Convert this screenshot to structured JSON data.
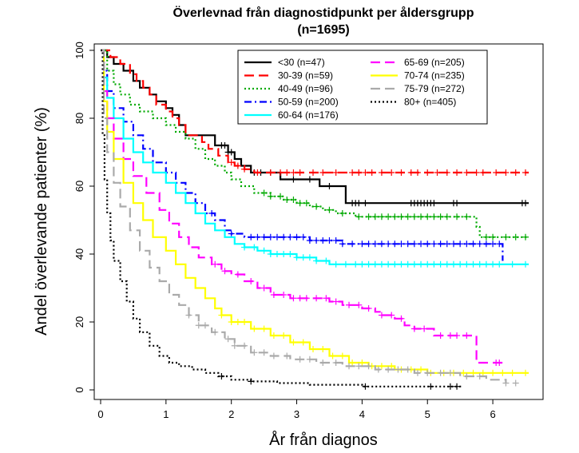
{
  "chart_data": {
    "type": "line",
    "title": "Överlevnad från diagnostidpunkt per åldersgrupp",
    "subtitle": "(n=1695)",
    "xlabel": "År från diagnos",
    "ylabel": "Andel överlevande patienter (%)",
    "xlim": [
      0,
      6.5
    ],
    "ylim": [
      0,
      100
    ],
    "x_ticks": [
      "0",
      "1",
      "2",
      "3",
      "4",
      "5",
      "6"
    ],
    "y_ticks": [
      "0",
      "20",
      "40",
      "60",
      "80",
      "100"
    ],
    "grid": false,
    "legend_position": "top-right",
    "series": [
      {
        "name": "<30 (n=47)",
        "color": "#000000",
        "style": "solid",
        "points": [
          [
            0,
            100
          ],
          [
            0.1,
            98
          ],
          [
            0.2,
            96
          ],
          [
            0.35,
            94
          ],
          [
            0.5,
            91
          ],
          [
            0.6,
            89
          ],
          [
            0.75,
            87
          ],
          [
            0.85,
            85
          ],
          [
            1.0,
            83
          ],
          [
            1.1,
            81
          ],
          [
            1.2,
            78
          ],
          [
            1.3,
            75
          ],
          [
            1.6,
            75
          ],
          [
            1.75,
            72
          ],
          [
            1.95,
            70
          ],
          [
            2.05,
            68
          ],
          [
            2.15,
            66
          ],
          [
            2.3,
            64
          ],
          [
            2.6,
            64
          ],
          [
            2.75,
            62
          ],
          [
            3.3,
            62
          ],
          [
            3.35,
            60
          ],
          [
            3.75,
            58
          ],
          [
            3.75,
            55
          ],
          [
            6.55,
            55
          ]
        ],
        "censor": [
          1.85,
          1.9,
          1.95,
          2.0,
          2.35,
          2.45,
          2.6,
          2.95,
          3.2,
          3.5,
          3.85,
          3.9,
          3.95,
          4.05,
          4.75,
          4.8,
          4.85,
          4.9,
          4.95,
          5.0,
          5.05,
          5.1,
          5.4,
          5.45,
          6.45,
          6.5
        ]
      },
      {
        "name": "30-39 (n=59)",
        "color": "#ff0000",
        "style": "longdash",
        "points": [
          [
            0,
            100
          ],
          [
            0.15,
            98
          ],
          [
            0.3,
            96
          ],
          [
            0.45,
            93
          ],
          [
            0.55,
            91
          ],
          [
            0.65,
            89
          ],
          [
            0.75,
            87
          ],
          [
            0.85,
            84
          ],
          [
            1.0,
            82
          ],
          [
            1.1,
            80
          ],
          [
            1.2,
            78
          ],
          [
            1.3,
            75
          ],
          [
            1.55,
            73
          ],
          [
            1.65,
            71
          ],
          [
            1.8,
            69
          ],
          [
            1.95,
            67
          ],
          [
            2.05,
            66
          ],
          [
            2.2,
            65
          ],
          [
            2.35,
            64
          ],
          [
            6.55,
            64
          ]
        ],
        "censor": [
          2.0,
          2.1,
          2.2,
          2.4,
          2.6,
          2.75,
          2.85,
          2.95,
          3.05,
          3.25,
          3.4,
          3.6,
          3.85,
          3.95,
          4.05,
          4.15,
          4.3,
          4.45,
          4.6,
          4.75,
          4.85,
          5.0,
          5.15,
          5.3,
          5.45,
          5.6,
          5.75,
          5.85,
          6.05,
          6.2,
          6.35,
          6.5
        ]
      },
      {
        "name": "40-49 (n=96)",
        "color": "#00aa00",
        "style": "dotted",
        "points": [
          [
            0,
            100
          ],
          [
            0.1,
            94
          ],
          [
            0.2,
            90
          ],
          [
            0.3,
            87
          ],
          [
            0.45,
            84
          ],
          [
            0.6,
            82
          ],
          [
            0.8,
            80
          ],
          [
            1.0,
            78
          ],
          [
            1.15,
            76
          ],
          [
            1.3,
            74
          ],
          [
            1.45,
            71
          ],
          [
            1.6,
            68
          ],
          [
            1.75,
            66
          ],
          [
            1.9,
            64
          ],
          [
            2.0,
            62
          ],
          [
            2.15,
            60
          ],
          [
            2.35,
            58
          ],
          [
            2.6,
            57
          ],
          [
            2.8,
            56
          ],
          [
            3.0,
            55
          ],
          [
            3.2,
            54
          ],
          [
            3.4,
            53
          ],
          [
            3.6,
            52
          ],
          [
            3.9,
            51
          ],
          [
            5.75,
            51
          ],
          [
            5.75,
            48
          ],
          [
            5.8,
            45
          ],
          [
            6.55,
            45
          ]
        ],
        "censor": [
          2.5,
          2.6,
          2.75,
          2.85,
          2.95,
          3.05,
          3.15,
          3.3,
          3.5,
          3.7,
          3.95,
          4.1,
          4.2,
          4.3,
          4.4,
          4.5,
          4.6,
          4.7,
          4.8,
          4.9,
          5.0,
          5.1,
          5.2,
          5.3,
          5.45,
          5.6,
          5.9,
          6.0,
          6.2,
          6.35,
          6.5
        ]
      },
      {
        "name": "50-59 (n=200)",
        "color": "#0000ff",
        "style": "dotdash",
        "points": [
          [
            0,
            100
          ],
          [
            0.05,
            94
          ],
          [
            0.1,
            88
          ],
          [
            0.2,
            83
          ],
          [
            0.35,
            79
          ],
          [
            0.5,
            75
          ],
          [
            0.65,
            71
          ],
          [
            0.8,
            67
          ],
          [
            1.0,
            64
          ],
          [
            1.15,
            61
          ],
          [
            1.3,
            58
          ],
          [
            1.45,
            55
          ],
          [
            1.6,
            52
          ],
          [
            1.75,
            50
          ],
          [
            1.9,
            47
          ],
          [
            2.0,
            46
          ],
          [
            2.2,
            45
          ],
          [
            3.0,
            45
          ],
          [
            3.2,
            44
          ],
          [
            3.6,
            44
          ],
          [
            3.7,
            43
          ],
          [
            6.1,
            43
          ],
          [
            6.15,
            42
          ],
          [
            6.15,
            38
          ]
        ],
        "censor": [
          1.7,
          2.0,
          2.3,
          2.4,
          2.5,
          2.6,
          2.7,
          2.8,
          2.9,
          3.0,
          3.1,
          3.2,
          3.3,
          3.4,
          3.5,
          3.6,
          3.7,
          3.85,
          4.0,
          4.1,
          4.2,
          4.3,
          4.4,
          4.5,
          4.6,
          4.7,
          4.8,
          4.9,
          5.0,
          5.1,
          5.2,
          5.3,
          5.4,
          5.5,
          5.6,
          5.7,
          5.8,
          5.9,
          6.0,
          6.1
        ]
      },
      {
        "name": "60-64 (n=176)",
        "color": "#00ffff",
        "style": "solid",
        "points": [
          [
            0,
            100
          ],
          [
            0.05,
            92
          ],
          [
            0.1,
            86
          ],
          [
            0.2,
            80
          ],
          [
            0.35,
            74
          ],
          [
            0.5,
            70
          ],
          [
            0.65,
            67
          ],
          [
            0.8,
            64
          ],
          [
            1.0,
            61
          ],
          [
            1.15,
            58
          ],
          [
            1.3,
            55
          ],
          [
            1.45,
            52
          ],
          [
            1.6,
            49
          ],
          [
            1.75,
            47
          ],
          [
            1.9,
            45
          ],
          [
            2.05,
            43
          ],
          [
            2.2,
            42
          ],
          [
            2.4,
            41
          ],
          [
            2.6,
            40
          ],
          [
            3.0,
            39
          ],
          [
            3.3,
            38
          ],
          [
            3.5,
            37
          ],
          [
            6.55,
            37
          ]
        ],
        "censor": [
          2.2,
          2.35,
          2.5,
          2.6,
          2.7,
          2.8,
          2.9,
          3.0,
          3.1,
          3.2,
          3.3,
          3.45,
          3.6,
          3.75,
          3.9,
          4.0,
          4.1,
          4.2,
          4.3,
          4.4,
          4.5,
          4.6,
          4.7,
          4.8,
          4.9,
          5.0,
          5.1,
          5.2,
          5.3,
          5.4,
          5.5,
          5.6,
          5.7,
          5.8,
          5.9,
          6.0,
          6.1,
          6.3,
          6.5
        ]
      },
      {
        "name": "65-69 (n=205)",
        "color": "#ff00ff",
        "style": "longdash",
        "points": [
          [
            0,
            100
          ],
          [
            0.05,
            88
          ],
          [
            0.1,
            80
          ],
          [
            0.2,
            74
          ],
          [
            0.35,
            68
          ],
          [
            0.5,
            63
          ],
          [
            0.7,
            58
          ],
          [
            0.9,
            53
          ],
          [
            1.05,
            49
          ],
          [
            1.2,
            45
          ],
          [
            1.35,
            42
          ],
          [
            1.5,
            39
          ],
          [
            1.7,
            37
          ],
          [
            1.85,
            35
          ],
          [
            2.0,
            34
          ],
          [
            2.2,
            32
          ],
          [
            2.4,
            30
          ],
          [
            2.6,
            28
          ],
          [
            2.9,
            27
          ],
          [
            3.3,
            27
          ],
          [
            3.5,
            26
          ],
          [
            3.7,
            25
          ],
          [
            4.0,
            24
          ],
          [
            4.2,
            23
          ],
          [
            4.3,
            22
          ],
          [
            4.5,
            21
          ],
          [
            4.65,
            19
          ],
          [
            4.8,
            18
          ],
          [
            5.1,
            16
          ],
          [
            5.7,
            16
          ],
          [
            5.75,
            13
          ],
          [
            5.75,
            8
          ],
          [
            6.2,
            8
          ]
        ],
        "censor": [
          1.75,
          1.9,
          2.1,
          2.3,
          2.5,
          2.65,
          2.8,
          2.95,
          3.05,
          3.15,
          3.3,
          3.45,
          3.6,
          3.8,
          3.95,
          4.1,
          4.3,
          4.45,
          4.6,
          4.8,
          4.95,
          5.2,
          5.35,
          5.45,
          5.6,
          6.05,
          6.1
        ]
      },
      {
        "name": "70-74 (n=235)",
        "color": "#ffff00",
        "style": "solid",
        "points": [
          [
            0,
            100
          ],
          [
            0.05,
            85
          ],
          [
            0.1,
            76
          ],
          [
            0.2,
            68
          ],
          [
            0.35,
            61
          ],
          [
            0.5,
            55
          ],
          [
            0.65,
            50
          ],
          [
            0.8,
            45
          ],
          [
            1.0,
            41
          ],
          [
            1.15,
            37
          ],
          [
            1.3,
            33
          ],
          [
            1.45,
            30
          ],
          [
            1.6,
            27
          ],
          [
            1.75,
            24
          ],
          [
            1.85,
            22
          ],
          [
            2.0,
            20
          ],
          [
            2.3,
            18
          ],
          [
            2.6,
            16
          ],
          [
            2.9,
            14
          ],
          [
            3.2,
            12
          ],
          [
            3.5,
            10
          ],
          [
            3.8,
            8
          ],
          [
            4.1,
            7
          ],
          [
            4.5,
            6
          ],
          [
            5.0,
            5
          ],
          [
            6.55,
            5
          ]
        ],
        "censor": [
          1.85,
          2.0,
          2.1,
          2.2,
          2.35,
          2.5,
          2.65,
          2.8,
          2.95,
          3.1,
          3.25,
          3.4,
          3.55,
          3.7,
          3.85,
          4.0,
          4.15,
          4.3,
          4.45,
          4.6,
          4.75,
          4.9,
          5.05,
          5.25,
          5.4,
          5.55,
          5.7,
          5.85,
          6.0,
          6.15,
          6.3,
          6.5
        ]
      },
      {
        "name": "75-79 (n=272)",
        "color": "#aaaaaa",
        "style": "longdash",
        "points": [
          [
            0,
            100
          ],
          [
            0.05,
            80
          ],
          [
            0.1,
            70
          ],
          [
            0.2,
            61
          ],
          [
            0.3,
            54
          ],
          [
            0.45,
            47
          ],
          [
            0.6,
            41
          ],
          [
            0.75,
            36
          ],
          [
            0.9,
            32
          ],
          [
            1.05,
            28
          ],
          [
            1.2,
            25
          ],
          [
            1.35,
            22
          ],
          [
            1.5,
            19
          ],
          [
            1.7,
            17
          ],
          [
            1.9,
            15
          ],
          [
            2.05,
            13
          ],
          [
            2.3,
            11
          ],
          [
            2.6,
            10
          ],
          [
            2.9,
            9
          ],
          [
            3.3,
            8
          ],
          [
            3.7,
            7
          ],
          [
            4.2,
            6
          ],
          [
            4.8,
            5
          ],
          [
            5.5,
            4
          ],
          [
            5.9,
            3
          ],
          [
            6.2,
            2
          ]
        ],
        "censor": [
          1.35,
          1.5,
          1.6,
          1.75,
          1.95,
          2.05,
          2.2,
          2.35,
          2.5,
          2.65,
          2.85,
          3.05,
          3.2,
          3.4,
          3.6,
          3.8,
          3.95,
          4.1,
          4.25,
          4.4,
          4.55,
          4.7,
          4.85,
          5.0,
          5.2,
          5.35,
          5.6,
          5.8,
          6.2,
          6.35
        ]
      },
      {
        "name": "80+ (n=405)",
        "color": "#000000",
        "style": "dotted",
        "points": [
          [
            0,
            100
          ],
          [
            0.03,
            75
          ],
          [
            0.06,
            62
          ],
          [
            0.1,
            52
          ],
          [
            0.15,
            44
          ],
          [
            0.2,
            38
          ],
          [
            0.3,
            32
          ],
          [
            0.4,
            26
          ],
          [
            0.5,
            21
          ],
          [
            0.6,
            17
          ],
          [
            0.75,
            13
          ],
          [
            0.9,
            10
          ],
          [
            1.05,
            8
          ],
          [
            1.2,
            7
          ],
          [
            1.4,
            6
          ],
          [
            1.6,
            5
          ],
          [
            1.8,
            4
          ],
          [
            2.0,
            3
          ],
          [
            2.3,
            2.5
          ],
          [
            2.7,
            2
          ],
          [
            3.2,
            1.5
          ],
          [
            4.0,
            1
          ],
          [
            5.0,
            1
          ],
          [
            5.5,
            0.5
          ]
        ],
        "censor": [
          1.85,
          2.3,
          4.05,
          5.05,
          5.35,
          5.45
        ]
      }
    ]
  }
}
